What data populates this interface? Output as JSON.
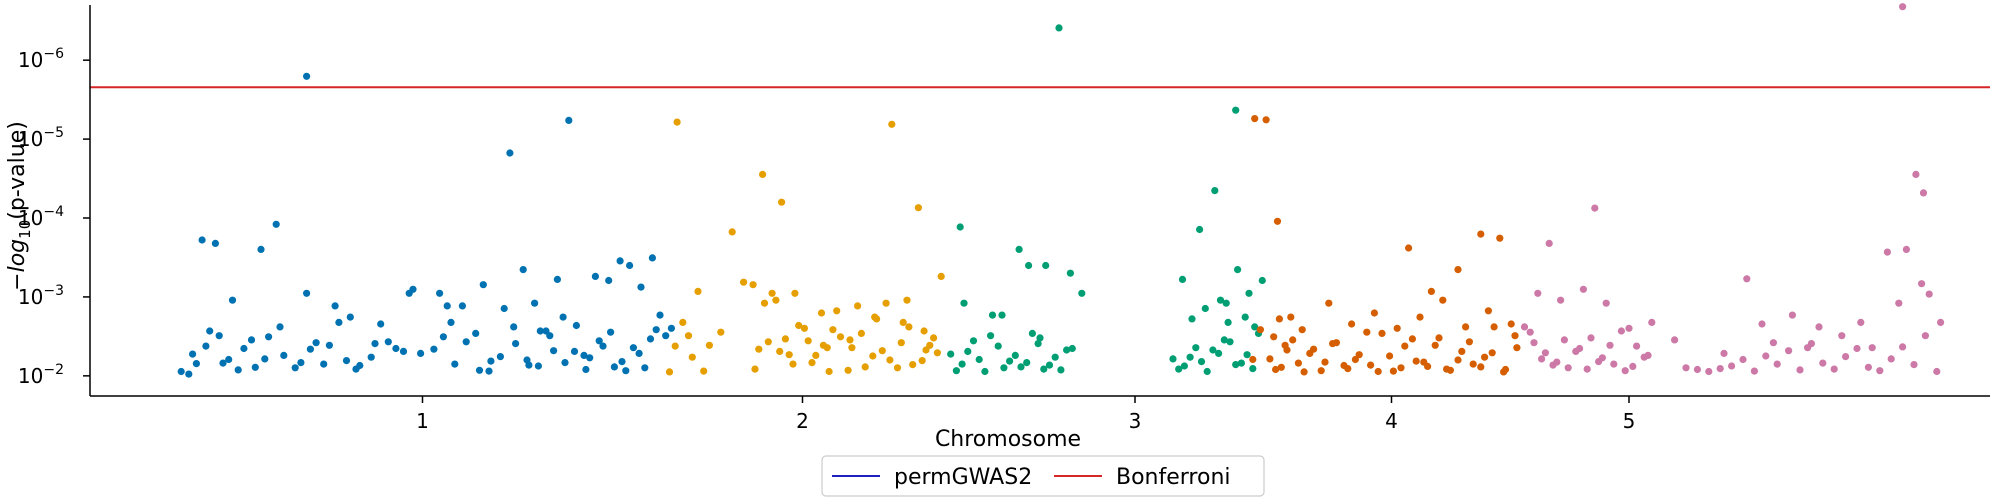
{
  "chart_data": {
    "type": "scatter",
    "title": "",
    "xlabel": "Chromosome",
    "ylabel": "−log10(p-value)",
    "ylabel_parts": {
      "prefix": "−",
      "log": "log",
      "base": "10",
      "suffix": "(p-value)"
    },
    "y_scale": "log-reversed",
    "ylim": [
      0.018,
      2e-07
    ],
    "xlim": [
      0,
      100
    ],
    "y_ticks": [
      {
        "value": 1e-06,
        "label_base": "10",
        "label_exp": "−6"
      },
      {
        "value": 1e-05,
        "label_base": "10",
        "label_exp": "−5"
      },
      {
        "value": 0.0001,
        "label_base": "10",
        "label_exp": "−4"
      },
      {
        "value": 0.001,
        "label_base": "10",
        "label_exp": "−3"
      },
      {
        "value": 0.01,
        "label_base": "10",
        "label_exp": "−2"
      }
    ],
    "x_ticks": [
      {
        "value": 17.5,
        "label": "1"
      },
      {
        "value": 37.5,
        "label": "2"
      },
      {
        "value": 55.0,
        "label": "3"
      },
      {
        "value": 68.5,
        "label": "4"
      },
      {
        "value": 81.0,
        "label": "5"
      }
    ],
    "threshold": {
      "name": "Bonferroni",
      "value": 2.2e-06,
      "color": "#d62728"
    },
    "legend": {
      "placement": "bottom-center",
      "entries": [
        {
          "label": "permGWAS2",
          "color": "#1f1fbf"
        },
        {
          "label": "Bonferroni",
          "color": "#d62728"
        }
      ]
    },
    "series": [
      {
        "chromosome": "1",
        "color": "#0072b2",
        "x": [
          5.2,
          5.6,
          6.1,
          6.8,
          7.3,
          8.1,
          8.7,
          9.4,
          10.2,
          11.1,
          11.9,
          12.6,
          13.5,
          14.2,
          15.0,
          16.1,
          17.4,
          4.8,
          5.4,
          6.3,
          7.0,
          7.8,
          8.5,
          9.2,
          10.0,
          10.8,
          11.6,
          12.3,
          13.1,
          14.0,
          14.8,
          15.7,
          16.5,
          9.0,
          9.8,
          5.9,
          6.6,
          7.5,
          11.4,
          12.9,
          13.7,
          15.3,
          16.8,
          17.0,
          18.1,
          18.6,
          19.2,
          19.8,
          20.5,
          21.1,
          21.8,
          22.4,
          23.1,
          23.7,
          24.4,
          25.0,
          25.6,
          26.3,
          27.0,
          27.6,
          28.2,
          28.9,
          29.5,
          18.4,
          19.0,
          19.6,
          20.3,
          21.0,
          21.6,
          22.3,
          23.0,
          23.6,
          24.2,
          24.9,
          25.5,
          26.1,
          26.8,
          27.4,
          28.0,
          28.6,
          29.2,
          29.8,
          20.7,
          22.8,
          24.6,
          26.6,
          27.9,
          29.0,
          30.0,
          30.6,
          22.1,
          25.2,
          27.3,
          18.8,
          23.4,
          24.0,
          28.4,
          26.0,
          29.6,
          30.3
        ],
        "y": [
          0.0095,
          0.007,
          0.0042,
          0.0031,
          0.0062,
          0.0045,
          0.0078,
          0.0032,
          0.0055,
          0.0068,
          0.0038,
          0.0041,
          0.0064,
          0.0074,
          0.0039,
          0.0045,
          0.0052,
          0.0088,
          0.0053,
          0.0027,
          0.0069,
          0.0084,
          0.0035,
          0.0061,
          0.0024,
          0.0079,
          0.0046,
          0.0071,
          0.0021,
          0.0082,
          0.0058,
          0.0037,
          0.0049,
          0.00025,
          0.00012,
          0.00019,
          0.00021,
          0.0011,
          0.0009,
          0.0013,
          0.0018,
          0.0022,
          0.0009,
          0.0008,
          0.0046,
          0.0032,
          0.0071,
          0.0037,
          0.0085,
          0.0065,
          0.0014,
          0.0039,
          0.0073,
          0.0027,
          0.0048,
          0.0068,
          0.0023,
          0.0059,
          0.0042,
          0.0077,
          0.0086,
          0.0052,
          0.0034,
          0.0009,
          0.0021,
          0.0013,
          0.0029,
          0.0087,
          0.0057,
          0.0024,
          0.0063,
          0.0075,
          0.0031,
          0.0018,
          0.0049,
          0.0083,
          0.0036,
          0.0028,
          0.0066,
          0.0044,
          0.0079,
          0.0026,
          0.0007,
          0.00045,
          0.0006,
          0.00055,
          0.00035,
          0.00075,
          0.0017,
          0.0025,
          1.5e-05,
          5.8e-06,
          0.00062,
          0.0013,
          0.0012,
          0.0027,
          0.0004,
          0.0055,
          0.00032,
          0.0031
        ]
      },
      {
        "chromosome": "1b",
        "color": "#0072b2",
        "x": [
          11.4
        ],
        "y": [
          1.6e-06
        ]
      },
      {
        "chromosome": "2",
        "color": "#e69f00",
        "x": [
          30.8,
          31.2,
          31.7,
          32.3,
          30.5,
          31.5,
          32.0,
          32.6,
          33.2,
          34.4,
          35.0,
          35.7,
          36.3,
          37.0,
          37.6,
          38.2,
          38.9,
          39.5,
          40.1,
          40.8,
          41.4,
          42.1,
          42.7,
          43.3,
          43.9,
          44.6,
          35.2,
          35.9,
          36.6,
          37.3,
          38.0,
          38.6,
          39.3,
          39.9,
          40.6,
          41.2,
          41.9,
          42.5,
          43.1,
          43.8,
          44.4,
          36.1,
          37.8,
          39.1,
          40.4,
          41.7,
          43.0,
          44.2,
          34.9,
          36.8,
          38.5,
          40.0,
          41.3,
          42.8,
          44.0,
          35.5,
          37.1,
          38.8,
          42.2,
          43.6,
          35.4,
          36.4,
          44.8,
          33.8,
          30.9
        ],
        "y": [
          0.0042,
          0.0021,
          0.0058,
          0.0087,
          0.0089,
          0.0031,
          0.00085,
          0.0041,
          0.0028,
          0.00065,
          0.0082,
          0.0037,
          0.0049,
          0.0071,
          0.0025,
          0.0055,
          0.0088,
          0.0032,
          0.0044,
          0.0077,
          0.0019,
          0.0063,
          0.0038,
          0.0072,
          0.0027,
          0.0051,
          0.0046,
          0.0009,
          0.0034,
          0.0023,
          0.0068,
          0.0041,
          0.0015,
          0.0085,
          0.0029,
          0.0056,
          0.0012,
          0.0079,
          0.0024,
          0.0064,
          0.0033,
          0.0011,
          0.0036,
          0.0026,
          0.0013,
          0.0048,
          0.0011,
          0.0041,
          0.0007,
          0.0054,
          0.0016,
          0.0035,
          0.0018,
          0.0021,
          0.0047,
          0.0012,
          0.0009,
          0.0044,
          6.5e-06,
          7.4e-05,
          2.8e-05,
          6.3e-05,
          0.00055,
          0.00015,
          6.1e-06
        ]
      },
      {
        "chromosome": "3",
        "color": "#009e73",
        "x": [
          45.3,
          45.9,
          46.5,
          47.1,
          47.8,
          48.4,
          49.0,
          49.6,
          50.2,
          50.8,
          51.4,
          45.6,
          46.2,
          46.8,
          47.4,
          48.1,
          48.7,
          49.3,
          49.9,
          50.5,
          51.1,
          51.7,
          46.0,
          47.5,
          48.9,
          50.3,
          51.6,
          52.2,
          45.8,
          49.4,
          48.0,
          50.0,
          57.0,
          57.6,
          58.2,
          58.8,
          59.4,
          60.0,
          60.6,
          61.2,
          57.3,
          57.9,
          58.5,
          59.1,
          59.7,
          60.3,
          60.9,
          61.5,
          58.0,
          59.5,
          60.8,
          57.5,
          58.7,
          59.9,
          61.0,
          61.7,
          58.4,
          59.2,
          60.4,
          59.8,
          61.3
        ],
        "y": [
          0.0053,
          0.0071,
          0.0036,
          0.0088,
          0.0042,
          0.0065,
          0.0077,
          0.0029,
          0.0082,
          0.0058,
          0.0047,
          0.0086,
          0.0049,
          0.0062,
          0.0031,
          0.0079,
          0.0055,
          0.0068,
          0.0039,
          0.0073,
          0.0084,
          0.0045,
          0.0012,
          0.0017,
          0.00025,
          0.0004,
          0.0005,
          0.0009,
          0.00013,
          0.0004,
          0.0017,
          0.0033,
          0.0061,
          0.0075,
          0.0044,
          0.0088,
          0.0052,
          0.0037,
          0.0069,
          0.0081,
          0.0082,
          0.0058,
          0.0066,
          0.0047,
          0.0035,
          0.0072,
          0.0054,
          0.0029,
          0.0019,
          0.0011,
          0.0018,
          0.0006,
          0.0014,
          0.0021,
          0.0009,
          0.00062,
          0.00014,
          4.5e-05,
          0.00045,
          0.0012,
          0.0024
        ]
      },
      {
        "chromosome": "3b",
        "color": "#009e73",
        "x": [
          51.0,
          60.3
        ],
        "y": [
          3.9e-07,
          4.3e-06
        ]
      },
      {
        "chromosome": "4",
        "color": "#d55e00",
        "x": [
          62.1,
          62.7,
          63.3,
          63.9,
          64.4,
          65.0,
          65.6,
          66.2,
          66.8,
          67.4,
          68.0,
          68.6,
          69.2,
          69.8,
          70.4,
          71.0,
          71.6,
          72.2,
          72.8,
          73.4,
          73.9,
          74.5,
          75.1,
          62.4,
          63.0,
          63.6,
          64.2,
          64.8,
          65.4,
          66.0,
          66.6,
          67.2,
          67.8,
          68.4,
          69.0,
          69.6,
          70.2,
          70.8,
          71.4,
          72.0,
          72.6,
          73.2,
          73.8,
          74.4,
          75.0,
          62.6,
          63.8,
          65.2,
          66.4,
          67.6,
          68.8,
          70.0,
          71.2,
          72.4,
          73.6,
          74.8,
          69.4,
          70.6,
          72.0,
          73.2,
          74.2,
          61.3,
          61.9,
          62.5,
          63.2,
          61.6,
          62.3,
          62.9,
          61.2
        ],
        "y": [
          0.0061,
          0.0078,
          0.0035,
          0.0089,
          0.0046,
          0.0067,
          0.0038,
          0.0081,
          0.0054,
          0.0073,
          0.0029,
          0.0087,
          0.0042,
          0.0065,
          0.0076,
          0.0033,
          0.0085,
          0.0049,
          0.0071,
          0.0058,
          0.0024,
          0.0083,
          0.0044,
          0.0083,
          0.0047,
          0.0069,
          0.0052,
          0.0086,
          0.0039,
          0.0074,
          0.0062,
          0.0028,
          0.0088,
          0.0056,
          0.0079,
          0.0034,
          0.0067,
          0.0041,
          0.0082,
          0.0063,
          0.0037,
          0.0077,
          0.0051,
          0.0089,
          0.0031,
          0.0019,
          0.0026,
          0.0012,
          0.0022,
          0.0016,
          0.0025,
          0.0018,
          0.0011,
          0.0024,
          0.0015,
          0.0022,
          0.00024,
          0.00085,
          0.00045,
          0.00016,
          0.00018,
          5.5e-06,
          5.7e-06,
          0.00011,
          0.0018,
          0.0026,
          0.0032,
          0.0041,
          0.0062
        ]
      },
      {
        "chromosome": "5",
        "color": "#cc79a7",
        "x": [
          75.5,
          76.0,
          76.6,
          77.2,
          77.8,
          78.4,
          79.0,
          79.6,
          80.2,
          80.8,
          81.4,
          82.0,
          75.8,
          76.4,
          77.0,
          77.6,
          78.2,
          78.8,
          79.4,
          80.0,
          80.6,
          81.2,
          81.8,
          76.2,
          77.4,
          78.6,
          79.8,
          81.0,
          82.2,
          83.4,
          84.0,
          84.6,
          85.2,
          85.8,
          86.4,
          87.0,
          87.6,
          88.2,
          88.8,
          89.4,
          90.0,
          90.6,
          91.2,
          91.8,
          92.4,
          93.0,
          93.6,
          94.2,
          94.8,
          95.4,
          96.0,
          96.6,
          97.2,
          86.0,
          88.0,
          89.6,
          91.0,
          92.2,
          93.8,
          95.2,
          96.4,
          97.4,
          96.8,
          95.6,
          94.6,
          93.2,
          90.4,
          88.6,
          87.2,
          76.8,
          79.2
        ],
        "y": [
          0.0024,
          0.0038,
          0.0051,
          0.0067,
          0.0079,
          0.0045,
          0.0033,
          0.0059,
          0.0071,
          0.0086,
          0.0042,
          0.0055,
          0.0028,
          0.0061,
          0.0073,
          0.0035,
          0.0049,
          0.0082,
          0.0066,
          0.0041,
          0.0027,
          0.0076,
          0.0058,
          0.0009,
          0.0011,
          0.0008,
          0.0012,
          0.0025,
          0.0021,
          0.0035,
          0.0079,
          0.0083,
          0.0088,
          0.0081,
          0.0075,
          0.0062,
          0.0087,
          0.0056,
          0.0071,
          0.0048,
          0.0084,
          0.0039,
          0.0069,
          0.0082,
          0.0057,
          0.0045,
          0.0078,
          0.0086,
          0.0061,
          0.0043,
          0.0072,
          0.0031,
          0.0088,
          0.0052,
          0.0022,
          0.0017,
          0.0024,
          0.0031,
          0.0044,
          0.0012,
          0.00068,
          0.0021,
          0.00092,
          0.00025,
          0.00027,
          0.0021,
          0.0044,
          0.0038,
          0.00059,
          0.00021,
          7.5e-05
        ]
      },
      {
        "chromosome": "5b",
        "color": "#cc79a7",
        "x": [
          95.4,
          96.1,
          96.5
        ],
        "y": [
          2.1e-07,
          2.8e-05,
          4.8e-05
        ]
      }
    ]
  }
}
